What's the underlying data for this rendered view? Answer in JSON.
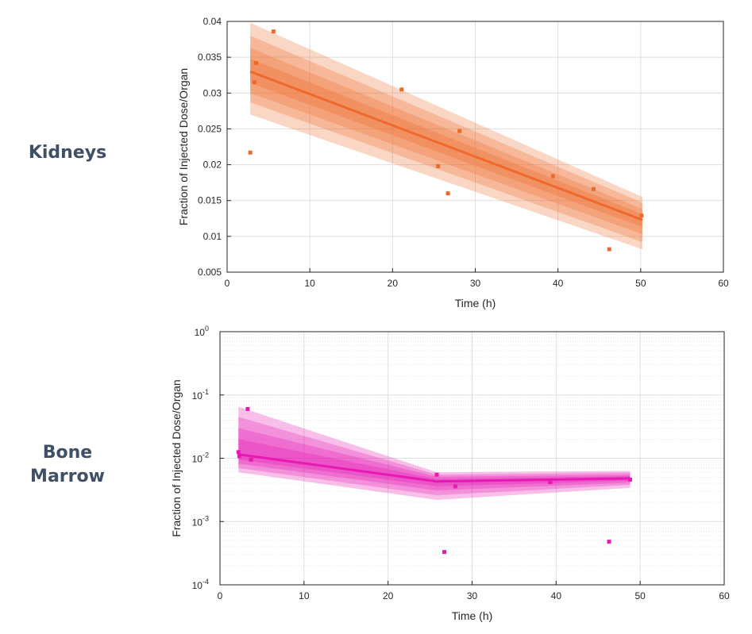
{
  "labels": {
    "kidneys": "Kidneys",
    "bone_line1": "Bone",
    "bone_line2": "Marrow"
  },
  "chart_data": [
    {
      "type": "line",
      "id": "kidneys",
      "xlabel": "Time (h)",
      "ylabel": "Fraction of Injected Dose/Organ",
      "xlim": [
        0,
        60
      ],
      "ylim": [
        0.005,
        0.04
      ],
      "yscale": "linear",
      "grid": true,
      "x_ticks": [
        0,
        10,
        20,
        30,
        40,
        50,
        60
      ],
      "x_tick_labels": [
        "0",
        "10",
        "20",
        "30",
        "40",
        "50",
        "60"
      ],
      "y_ticks": [
        0.005,
        0.01,
        0.015,
        0.02,
        0.025,
        0.03,
        0.035,
        0.04
      ],
      "y_tick_labels": [
        "0.005",
        "0.01",
        "0.015",
        "0.02",
        "0.025",
        "0.03",
        "0.035",
        "0.04"
      ],
      "color": "#ee6a2c",
      "fit_line": {
        "x": [
          2.8,
          50.2
        ],
        "y": [
          0.033,
          0.0123
        ]
      },
      "bands": [
        {
          "x": [
            2.8,
            50.2
          ],
          "upper": [
            0.0398,
            0.0155
          ],
          "lower": [
            0.027,
            0.0082
          ]
        },
        {
          "x": [
            2.8,
            50.2
          ],
          "upper": [
            0.038,
            0.0147
          ],
          "lower": [
            0.0287,
            0.0092
          ]
        },
        {
          "x": [
            2.8,
            50.2
          ],
          "upper": [
            0.0363,
            0.0138
          ],
          "lower": [
            0.03,
            0.0103
          ]
        },
        {
          "x": [
            2.8,
            50.2
          ],
          "upper": [
            0.0348,
            0.0131
          ],
          "lower": [
            0.0314,
            0.0113
          ]
        }
      ],
      "points": [
        {
          "x": 2.8,
          "y": 0.0217
        },
        {
          "x": 3.3,
          "y": 0.0315
        },
        {
          "x": 3.5,
          "y": 0.0342
        },
        {
          "x": 5.6,
          "y": 0.0386
        },
        {
          "x": 21.1,
          "y": 0.0305
        },
        {
          "x": 25.5,
          "y": 0.0198
        },
        {
          "x": 26.7,
          "y": 0.016
        },
        {
          "x": 28.1,
          "y": 0.0247
        },
        {
          "x": 39.4,
          "y": 0.0184
        },
        {
          "x": 44.3,
          "y": 0.0166
        },
        {
          "x": 46.2,
          "y": 0.0082
        },
        {
          "x": 50.1,
          "y": 0.0129
        }
      ]
    },
    {
      "type": "line",
      "id": "bone-marrow",
      "xlabel": "Time (h)",
      "ylabel": "Fraction of Injected Dose/Organ",
      "xlim": [
        0,
        60
      ],
      "ylim": [
        0.0001,
        1
      ],
      "yscale": "log",
      "grid": true,
      "x_ticks": [
        0,
        10,
        20,
        30,
        40,
        50,
        60
      ],
      "x_tick_labels": [
        "0",
        "10",
        "20",
        "30",
        "40",
        "50",
        "60"
      ],
      "y_ticks": [
        0.0001,
        0.001,
        0.01,
        0.1,
        1
      ],
      "y_tick_base": [
        "10",
        "10",
        "10",
        "10",
        "10"
      ],
      "y_tick_exp": [
        "-4",
        "-3",
        "-2",
        "-1",
        "0"
      ],
      "color": "#e619b4",
      "fit_line": {
        "x": [
          2.2,
          25.8,
          48.8
        ],
        "y": [
          0.0115,
          0.0043,
          0.0048
        ]
      },
      "bands": [
        {
          "x": [
            2.2,
            25.8,
            48.8
          ],
          "upper": [
            0.065,
            0.006,
            0.0063
          ],
          "lower": [
            0.006,
            0.0022,
            0.0034
          ]
        },
        {
          "x": [
            2.2,
            25.8,
            48.8
          ],
          "upper": [
            0.045,
            0.0055,
            0.0059
          ],
          "lower": [
            0.007,
            0.0026,
            0.0038
          ]
        },
        {
          "x": [
            2.2,
            25.8,
            48.8
          ],
          "upper": [
            0.03,
            0.0051,
            0.0055
          ],
          "lower": [
            0.0082,
            0.0031,
            0.0041
          ]
        },
        {
          "x": [
            2.2,
            25.8,
            48.8
          ],
          "upper": [
            0.02,
            0.0047,
            0.0052
          ],
          "lower": [
            0.0095,
            0.0036,
            0.0044
          ]
        }
      ],
      "points": [
        {
          "x": 2.2,
          "y": 0.0125
        },
        {
          "x": 2.3,
          "y": 0.0108
        },
        {
          "x": 3.3,
          "y": 0.06
        },
        {
          "x": 3.7,
          "y": 0.0095
        },
        {
          "x": 25.8,
          "y": 0.0055
        },
        {
          "x": 26.7,
          "y": 0.00033
        },
        {
          "x": 28.0,
          "y": 0.0036
        },
        {
          "x": 39.3,
          "y": 0.0042
        },
        {
          "x": 46.3,
          "y": 0.00048
        },
        {
          "x": 48.8,
          "y": 0.0046
        }
      ]
    }
  ]
}
